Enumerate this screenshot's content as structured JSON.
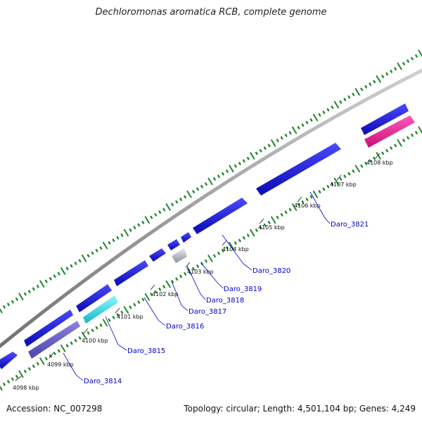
{
  "title": "Dechloromonas aromatica RCB, complete genome",
  "footer": {
    "accession": "Accession: NC_007298",
    "summary": "Topology: circular; Length: 4,501,104 bp; Genes: 4,249"
  },
  "ruler": [
    "4098 kbp",
    "4099 kbp",
    "4100 kbp",
    "4101 kbp",
    "4102 kbp",
    "4103 kbp",
    "4104 kbp",
    "4105 kbp",
    "4106 kbp",
    "4107 kbp",
    "4108 kbp"
  ],
  "genes": [
    {
      "label": "Daro_3814",
      "color": "#2222dd"
    },
    {
      "label": "Daro_3815",
      "color": "#2222dd"
    },
    {
      "label": "Daro_3816",
      "color": "#2222dd"
    },
    {
      "label": "Daro_3817",
      "color": "#2222dd"
    },
    {
      "label": "Daro_3818",
      "color": "#2222dd"
    },
    {
      "label": "Daro_3819",
      "color": "#2222dd"
    },
    {
      "label": "Daro_3820",
      "color": "#2222dd"
    },
    {
      "label": "Daro_3821",
      "color": "#2222dd"
    }
  ],
  "colors": {
    "forward": "#1c1ce0",
    "reverse_violet": "#6a62cc",
    "reverse_cyan": "#22e0e8",
    "reverse_magenta": "#ee1a9a",
    "reverse_gray": "#b8b8c4",
    "backbone": "#8a8a8a",
    "tick_green": "#22882a"
  }
}
